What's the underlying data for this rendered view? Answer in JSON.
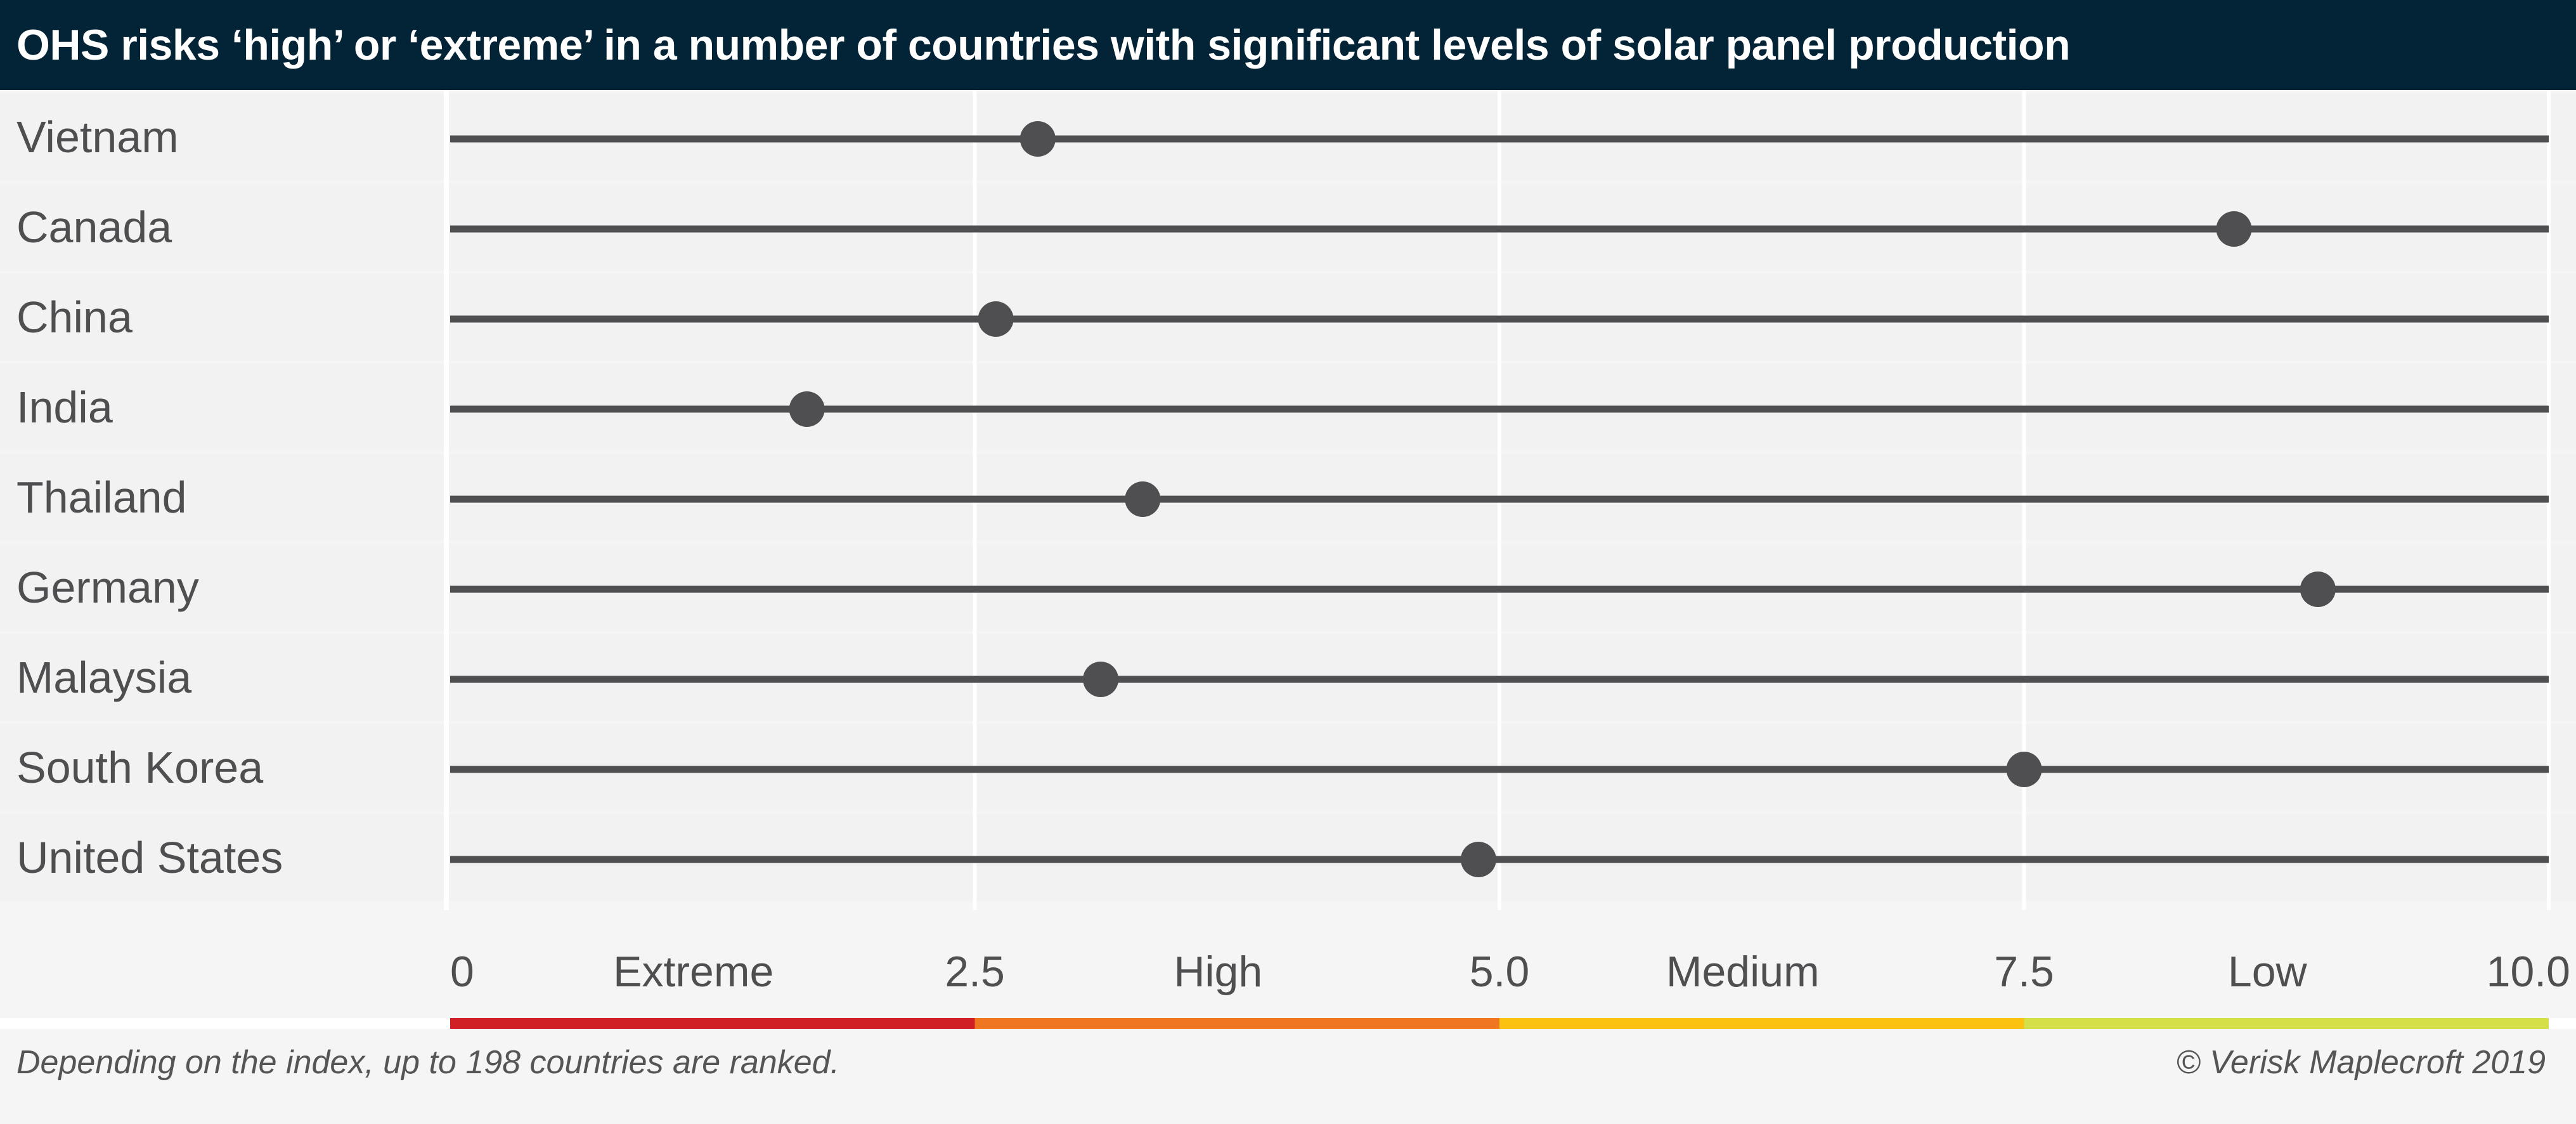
{
  "title": "OHS risks ‘high’ or ‘extreme’ in a number of countries with significant levels of solar panel production",
  "footer": {
    "note": "Depending on the index, up to 198 countries are ranked.",
    "credit": "© Verisk Maplecroft 2019"
  },
  "chart_data": {
    "type": "scatter",
    "categories": [
      "Vietnam",
      "Canada",
      "China",
      "India",
      "Thailand",
      "Germany",
      "Malaysia",
      "South Korea",
      "United States"
    ],
    "values": [
      2.8,
      8.5,
      2.6,
      1.7,
      3.3,
      8.9,
      3.1,
      7.5,
      4.9
    ],
    "xlim": [
      0,
      10
    ],
    "x_ticks": [
      "0",
      "2.5",
      "5.0",
      "7.5",
      "10.0"
    ],
    "x_tick_values": [
      0,
      2.5,
      5,
      7.5,
      10
    ],
    "bands": [
      {
        "label": "Extreme",
        "from": 0,
        "to": 2.5,
        "color": "#d11f26"
      },
      {
        "label": "High",
        "from": 2.5,
        "to": 5,
        "color": "#f07722"
      },
      {
        "label": "Medium",
        "from": 5,
        "to": 7.5,
        "color": "#fbc210"
      },
      {
        "label": "Low",
        "from": 7.5,
        "to": 10,
        "color": "#d5e049"
      }
    ],
    "grid": true,
    "colors": {
      "line": "#4f4f51",
      "marker": "#4f4f51",
      "label": "#4f4f51",
      "row": "#f2f2f2"
    }
  }
}
